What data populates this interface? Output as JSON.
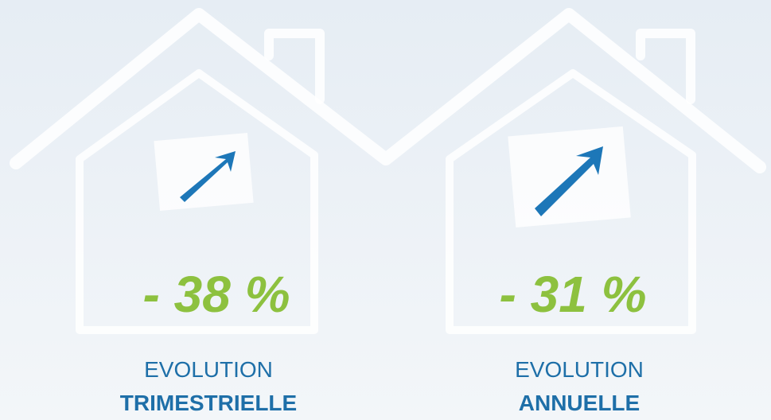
{
  "panels": [
    {
      "value": "- 38 %",
      "label": "EVOLUTION",
      "period": "TRIMESTRIELLE"
    },
    {
      "value": "- 31 %",
      "label": "EVOLUTION",
      "period": "ANNUELLE"
    }
  ]
}
